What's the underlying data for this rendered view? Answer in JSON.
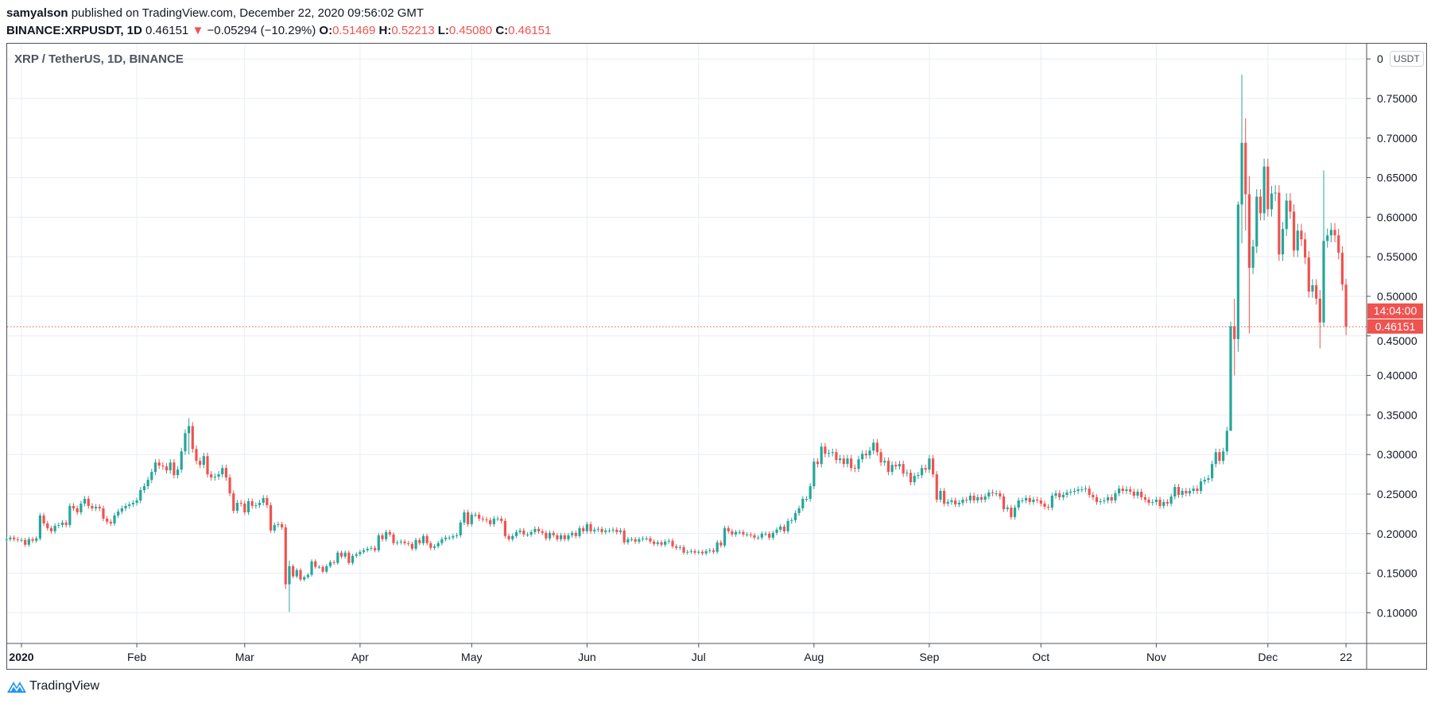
{
  "header": {
    "author": "samyalson",
    "published": "published on TradingView.com, December 22, 2020 09:56:02 GMT",
    "symbol": "BINANCE:XRPUSDT, 1D",
    "last": "0.46151",
    "change": "−0.05294 (−10.29%)",
    "o_label": "O:",
    "o": "0.51469",
    "h_label": "H:",
    "h": "0.52213",
    "l_label": "L:",
    "l": "0.45080",
    "c_label": "C:",
    "c": "0.46151"
  },
  "colors": {
    "up": "#26a69a",
    "down": "#ef5350",
    "grid": "#e8eef3",
    "axis": "#50535e"
  },
  "footer": {
    "brand": "TradingView",
    "icon": "tradingview-logo-icon"
  },
  "chart_data": {
    "type": "candlestick",
    "title": "XRP / TetherUS, 1D, BINANCE",
    "currency": "USDT",
    "ylim": [
      0.05,
      0.8
    ],
    "y_ticks": [
      "0.10000",
      "0.15000",
      "0.20000",
      "0.25000",
      "0.30000",
      "0.35000",
      "0.40000",
      "0.45000",
      "0.50000",
      "0.55000",
      "0.60000",
      "0.65000",
      "0.70000",
      "0.75000",
      "0"
    ],
    "x_ticks": [
      {
        "date": "2020-01-01",
        "label": "2020"
      },
      {
        "date": "2020-02-01",
        "label": "Feb"
      },
      {
        "date": "2020-03-01",
        "label": "Mar"
      },
      {
        "date": "2020-04-01",
        "label": "Apr"
      },
      {
        "date": "2020-05-01",
        "label": "May"
      },
      {
        "date": "2020-06-01",
        "label": "Jun"
      },
      {
        "date": "2020-07-01",
        "label": "Jul"
      },
      {
        "date": "2020-08-01",
        "label": "Aug"
      },
      {
        "date": "2020-09-01",
        "label": "Sep"
      },
      {
        "date": "2020-10-01",
        "label": "Oct"
      },
      {
        "date": "2020-11-01",
        "label": "Nov"
      },
      {
        "date": "2020-12-01",
        "label": "Dec"
      },
      {
        "date": "2020-12-22",
        "label": "22"
      }
    ],
    "grid": true,
    "last_price": "0.46151",
    "countdown": "14:04:00",
    "closes_by_month": {
      "2019-12": {
        "first_day": 28,
        "close": [
          0.193,
          0.195,
          0.193,
          0.192
        ]
      },
      "2020-01": {
        "first_day": 1,
        "close": [
          0.192,
          0.186,
          0.193,
          0.191,
          0.194,
          0.223,
          0.213,
          0.207,
          0.203,
          0.21,
          0.211,
          0.214,
          0.211,
          0.235,
          0.232,
          0.227,
          0.238,
          0.244,
          0.235,
          0.232,
          0.234,
          0.232,
          0.219,
          0.215,
          0.213,
          0.223,
          0.228,
          0.232,
          0.235,
          0.237,
          0.239
        ]
      },
      "2020-02": {
        "first_day": 1,
        "close": [
          0.242,
          0.255,
          0.26,
          0.268,
          0.278,
          0.29,
          0.286,
          0.285,
          0.28,
          0.29,
          0.274,
          0.281,
          0.304,
          0.327,
          0.336,
          0.307,
          0.292,
          0.287,
          0.298,
          0.275,
          0.271,
          0.272,
          0.275,
          0.283,
          0.271,
          0.251,
          0.229,
          0.239,
          0.238
        ]
      },
      "2020-03": {
        "first_day": 1,
        "close": [
          0.227,
          0.241,
          0.235,
          0.236,
          0.239,
          0.245,
          0.236,
          0.204,
          0.211,
          0.212,
          0.208,
          0.136,
          0.159,
          0.146,
          0.154,
          0.142,
          0.145,
          0.148,
          0.165,
          0.158,
          0.158,
          0.152,
          0.159,
          0.164,
          0.163,
          0.176,
          0.171,
          0.176,
          0.163,
          0.172,
          0.174
        ]
      },
      "2020-04": {
        "first_day": 1,
        "close": [
          0.177,
          0.179,
          0.181,
          0.182,
          0.179,
          0.198,
          0.193,
          0.202,
          0.199,
          0.188,
          0.189,
          0.19,
          0.188,
          0.187,
          0.181,
          0.192,
          0.188,
          0.197,
          0.188,
          0.182,
          0.184,
          0.188,
          0.193,
          0.195,
          0.195,
          0.197,
          0.198,
          0.214,
          0.227,
          0.212
        ]
      },
      "2020-05": {
        "first_day": 1,
        "close": [
          0.224,
          0.224,
          0.219,
          0.218,
          0.217,
          0.212,
          0.219,
          0.219,
          0.216,
          0.197,
          0.193,
          0.197,
          0.202,
          0.204,
          0.199,
          0.199,
          0.202,
          0.206,
          0.203,
          0.201,
          0.194,
          0.201,
          0.198,
          0.193,
          0.198,
          0.193,
          0.198,
          0.201,
          0.197,
          0.207,
          0.203
        ]
      },
      "2020-06": {
        "first_day": 1,
        "close": [
          0.212,
          0.203,
          0.205,
          0.206,
          0.202,
          0.204,
          0.204,
          0.205,
          0.202,
          0.204,
          0.189,
          0.193,
          0.193,
          0.19,
          0.193,
          0.194,
          0.194,
          0.19,
          0.187,
          0.189,
          0.186,
          0.19,
          0.191,
          0.184,
          0.182,
          0.183,
          0.176,
          0.177,
          0.178,
          0.176
        ]
      },
      "2020-07": {
        "first_day": 1,
        "close": [
          0.177,
          0.175,
          0.178,
          0.179,
          0.177,
          0.189,
          0.185,
          0.207,
          0.203,
          0.199,
          0.202,
          0.202,
          0.199,
          0.199,
          0.198,
          0.195,
          0.195,
          0.2,
          0.2,
          0.195,
          0.201,
          0.205,
          0.209,
          0.203,
          0.216,
          0.217,
          0.226,
          0.232,
          0.244,
          0.244,
          0.26
        ]
      },
      "2020-08": {
        "first_day": 1,
        "close": [
          0.291,
          0.288,
          0.31,
          0.301,
          0.302,
          0.303,
          0.293,
          0.295,
          0.288,
          0.295,
          0.283,
          0.282,
          0.294,
          0.301,
          0.299,
          0.305,
          0.315,
          0.303,
          0.29,
          0.292,
          0.278,
          0.287,
          0.285,
          0.288,
          0.276,
          0.277,
          0.265,
          0.273,
          0.274,
          0.283,
          0.281
        ]
      },
      "2020-09": {
        "first_day": 1,
        "close": [
          0.295,
          0.275,
          0.243,
          0.254,
          0.238,
          0.24,
          0.242,
          0.237,
          0.239,
          0.243,
          0.242,
          0.248,
          0.242,
          0.246,
          0.243,
          0.247,
          0.252,
          0.251,
          0.251,
          0.247,
          0.231,
          0.233,
          0.221,
          0.233,
          0.242,
          0.242,
          0.245,
          0.24,
          0.243,
          0.242
        ]
      },
      "2020-10": {
        "first_day": 1,
        "close": [
          0.238,
          0.234,
          0.233,
          0.248,
          0.251,
          0.246,
          0.249,
          0.252,
          0.253,
          0.254,
          0.256,
          0.256,
          0.257,
          0.249,
          0.246,
          0.24,
          0.241,
          0.242,
          0.246,
          0.242,
          0.251,
          0.257,
          0.254,
          0.256,
          0.253,
          0.248,
          0.253,
          0.246,
          0.243,
          0.239,
          0.24
        ]
      },
      "2020-11": {
        "first_day": 1,
        "close": [
          0.243,
          0.235,
          0.24,
          0.238,
          0.247,
          0.259,
          0.249,
          0.254,
          0.251,
          0.254,
          0.257,
          0.254,
          0.266,
          0.268,
          0.27,
          0.288,
          0.303,
          0.292,
          0.304,
          0.33,
          0.462,
          0.446,
          0.616,
          0.694,
          0.629,
          0.536,
          0.563,
          0.626,
          0.605,
          0.664
        ]
      },
      "2020-12": {
        "first_day": 1,
        "close": [
          0.61,
          0.63,
          0.631,
          0.553,
          0.585,
          0.621,
          0.607,
          0.558,
          0.583,
          0.572,
          0.549,
          0.506,
          0.514,
          0.497,
          0.467,
          0.57,
          0.577,
          0.584,
          0.577,
          0.555,
          0.515,
          0.46151
        ]
      }
    },
    "notable_high_low": {
      "2020-02-15": [
        0.346,
        0.3
      ],
      "2020-03-12": [
        0.212,
        0.13
      ],
      "2020-03-13": [
        0.166,
        0.101
      ],
      "2020-11-21": [
        0.468,
        0.398
      ],
      "2020-11-22": [
        0.497,
        0.4
      ],
      "2020-11-23": [
        0.62,
        0.43
      ],
      "2020-11-24": [
        0.78,
        0.567
      ],
      "2020-11-25": [
        0.725,
        0.583
      ],
      "2020-11-26": [
        0.652,
        0.453
      ],
      "2020-12-15": [
        0.508,
        0.434
      ],
      "2020-12-16": [
        0.659,
        0.462
      ],
      "2020-12-22": [
        0.52213,
        0.4508
      ]
    }
  }
}
